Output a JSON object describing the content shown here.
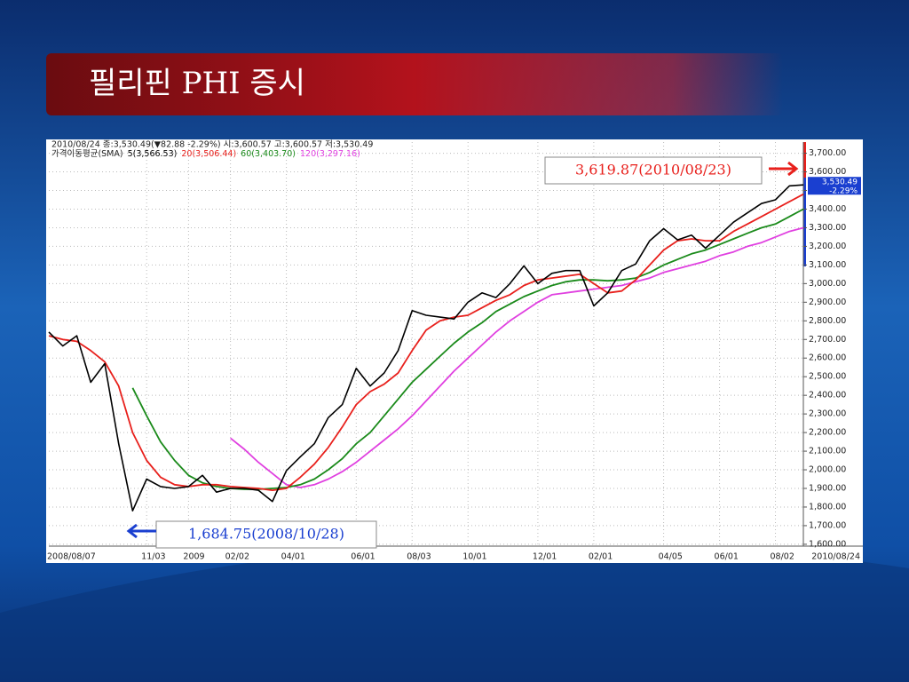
{
  "chart_data": {
    "type": "line",
    "title": "필리핀 PHI 증시",
    "info": "2010/08/24 종:3,530.49(▼82.88 -2.29%) 시:3,600.57 고:3,600.57 저:3,530.49",
    "legend_title": "가격이동평균(SMA)",
    "categories": [
      "2008/08/07",
      null,
      null,
      null,
      null,
      null,
      null,
      "11/03",
      null,
      null,
      "2009",
      null,
      null,
      "02/02",
      null,
      null,
      null,
      "04/01",
      null,
      null,
      null,
      null,
      "06/01",
      null,
      null,
      null,
      "08/03",
      null,
      null,
      null,
      "10/01",
      null,
      null,
      null,
      null,
      "12/01",
      null,
      null,
      null,
      "02/01",
      null,
      null,
      null,
      null,
      "04/05",
      null,
      null,
      null,
      "06/01",
      null,
      null,
      null,
      "08/02",
      null,
      "2010/08/24"
    ],
    "series": [
      {
        "name": "5(3,566.53)",
        "color": "#000000",
        "values": [
          2740,
          2665,
          2720,
          2470,
          2570,
          2140,
          1780,
          1950,
          1910,
          1900,
          1910,
          1970,
          1880,
          1900,
          1900,
          1890,
          1830,
          1995,
          2070,
          2140,
          2280,
          2350,
          2545,
          2450,
          2520,
          2640,
          2855,
          2830,
          2820,
          2810,
          2900,
          2950,
          2925,
          3000,
          3095,
          3000,
          3055,
          3070,
          3070,
          2880,
          2950,
          3070,
          3105,
          3230,
          3295,
          3235,
          3260,
          3190,
          3260,
          3330,
          3380,
          3430,
          3450,
          3525,
          3530
        ]
      },
      {
        "name": "20(3,506.44)",
        "color": "#e8201c",
        "values": [
          2720,
          2700,
          2690,
          2640,
          2580,
          2450,
          2200,
          2050,
          1960,
          1920,
          1910,
          1920,
          1920,
          1910,
          1905,
          1900,
          1890,
          1900,
          1960,
          2030,
          2120,
          2230,
          2350,
          2420,
          2460,
          2520,
          2640,
          2750,
          2800,
          2820,
          2830,
          2870,
          2910,
          2940,
          2990,
          3020,
          3030,
          3040,
          3050,
          3000,
          2950,
          2960,
          3020,
          3100,
          3180,
          3230,
          3240,
          3230,
          3230,
          3280,
          3320,
          3360,
          3400,
          3440,
          3480
        ]
      },
      {
        "name": "60(3,403.70)",
        "color": "#1a8a1a",
        "values": [
          null,
          null,
          null,
          null,
          null,
          null,
          2440,
          2290,
          2150,
          2050,
          1970,
          1930,
          1910,
          1900,
          1895,
          1895,
          1900,
          1905,
          1920,
          1950,
          2000,
          2060,
          2140,
          2200,
          2290,
          2380,
          2470,
          2540,
          2610,
          2680,
          2740,
          2790,
          2850,
          2890,
          2930,
          2960,
          2990,
          3010,
          3020,
          3020,
          3015,
          3020,
          3030,
          3060,
          3100,
          3130,
          3160,
          3180,
          3210,
          3240,
          3270,
          3300,
          3320,
          3360,
          3400
        ]
      },
      {
        "name": "120(3,297.16)",
        "color": "#e040e0",
        "values": [
          null,
          null,
          null,
          null,
          null,
          null,
          null,
          null,
          null,
          null,
          null,
          null,
          null,
          2170,
          2110,
          2040,
          1980,
          1920,
          1905,
          1920,
          1950,
          1990,
          2040,
          2100,
          2160,
          2220,
          2290,
          2370,
          2450,
          2530,
          2600,
          2670,
          2740,
          2800,
          2850,
          2900,
          2940,
          2950,
          2960,
          2970,
          2980,
          2990,
          3010,
          3030,
          3060,
          3080,
          3100,
          3120,
          3150,
          3170,
          3200,
          3220,
          3250,
          3280,
          3300
        ]
      }
    ],
    "last_label": [
      "3,530.49",
      "-2.29%"
    ],
    "annotations": [
      {
        "text": "3,619.87(2010/08/23)",
        "color": "#e8201c"
      },
      {
        "text": "1,684.75(2008/10/28)",
        "color": "#1a3fd0"
      }
    ],
    "ylim": [
      1590,
      3760
    ],
    "yticks": [
      {
        "value": 1600,
        "label": "1,600.00"
      },
      {
        "value": 1700,
        "label": "1,700.00"
      },
      {
        "value": 1800,
        "label": "1,800.00"
      },
      {
        "value": 1900,
        "label": "1,900.00"
      },
      {
        "value": 2000,
        "label": "2,000.00"
      },
      {
        "value": 2100,
        "label": "2,100.00"
      },
      {
        "value": 2200,
        "label": "2,200.00"
      },
      {
        "value": 2300,
        "label": "2,300.00"
      },
      {
        "value": 2400,
        "label": "2,400.00"
      },
      {
        "value": 2500,
        "label": "2,500.00"
      },
      {
        "value": 2600,
        "label": "2,600.00"
      },
      {
        "value": 2700,
        "label": "2,700.00"
      },
      {
        "value": 2800,
        "label": "2,800.00"
      },
      {
        "value": 2900,
        "label": "2,900.00"
      },
      {
        "value": 3000,
        "label": "3,000.00"
      },
      {
        "value": 3100,
        "label": "3,100.00"
      },
      {
        "value": 3200,
        "label": "3,200.00"
      },
      {
        "value": 3300,
        "label": "3,300.00"
      },
      {
        "value": 3400,
        "label": "3,400.00"
      },
      {
        "value": 3500,
        "label": "3,500.00"
      },
      {
        "value": 3600,
        "label": "3,600.00"
      },
      {
        "value": 3700,
        "label": "3,700.00"
      }
    ],
    "grid": true
  }
}
